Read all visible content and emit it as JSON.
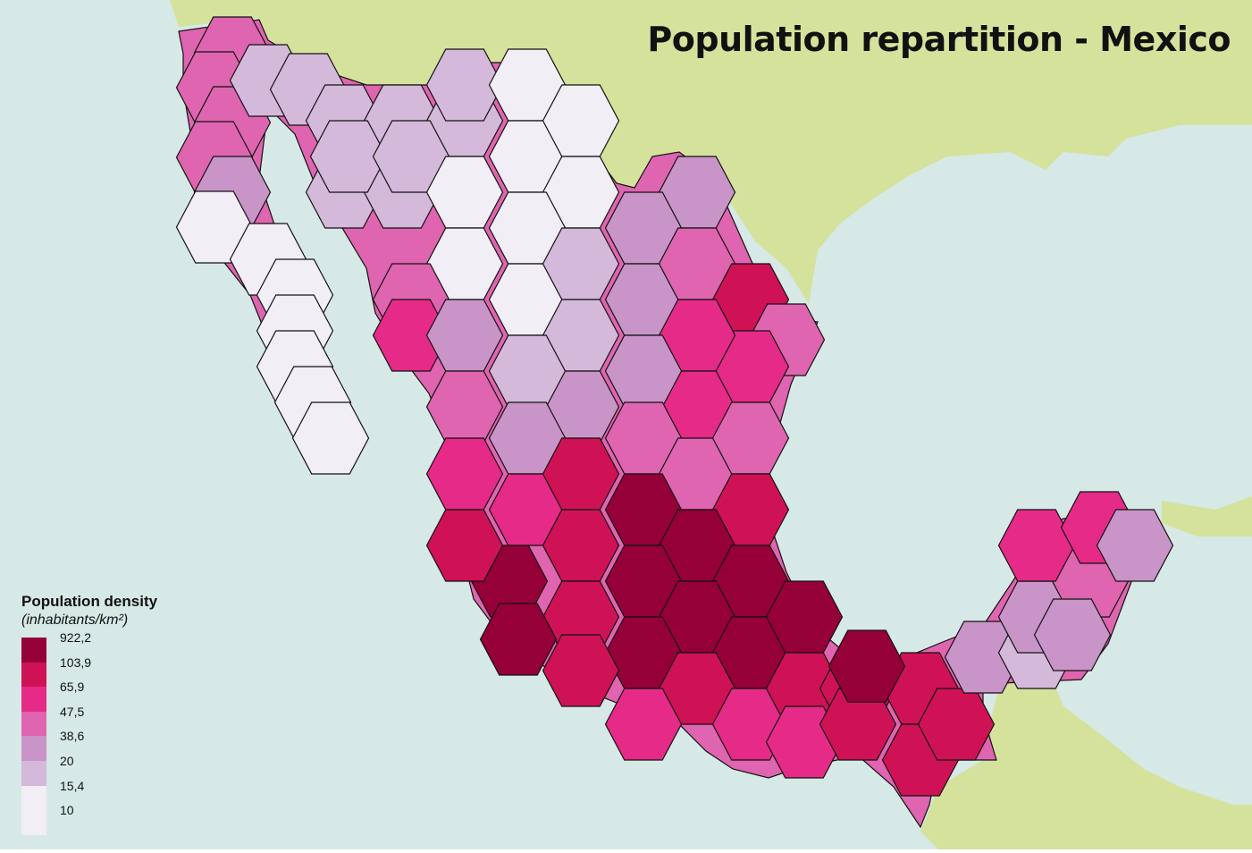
{
  "title": "Population repartition - Mexico",
  "colors": {
    "ocean": "#d6e9e6",
    "land_neighbors": "#d4e29c",
    "hex_stroke": "#111111"
  },
  "legend": {
    "title": "Population density",
    "subtitle": "(inhabitants/km²)",
    "classes": [
      {
        "label": "922,2",
        "color": "#950038"
      },
      {
        "label": "103,9",
        "color": "#cf1256"
      },
      {
        "label": "65,9",
        "color": "#e62a87"
      },
      {
        "label": "47,5",
        "color": "#df65b0"
      },
      {
        "label": "38,6",
        "color": "#c994c7"
      },
      {
        "label": "20",
        "color": "#d4b9da"
      },
      {
        "label": "15,4",
        "color": "#f1eef6"
      },
      {
        "label": "10",
        "color": ""
      }
    ]
  }
}
